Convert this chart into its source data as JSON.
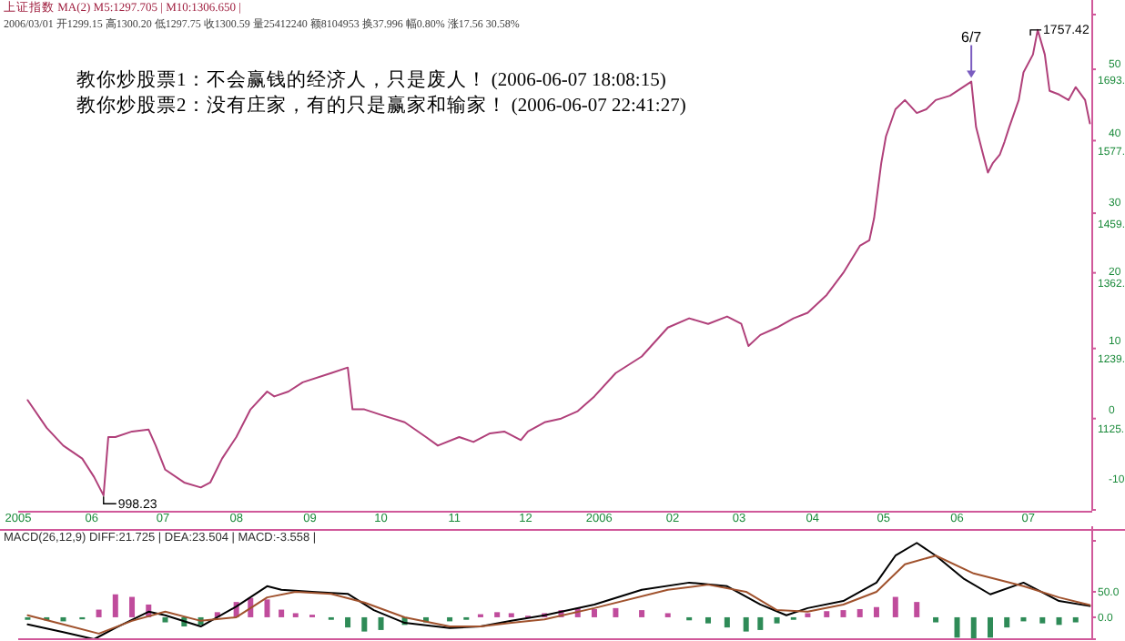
{
  "chart_data": [
    {
      "type": "line",
      "annotations": [
        "上证指数 MA(2) M5:1297.705 | M10:1306.650 |",
        "2006/03/01 开1299.15 高1300.20 低1297.75 收1300.59 量25412240 额8104953 换37.996 幅0.80% 涨17.56 30.58%",
        "教你炒股票1：不会赢钱的经济人，只是废人！ (2006-06-07 18:08:15)",
        "教你炒股票2：没有庄家，有的只是赢家和输家！ (2006-06-07 22:41:27)",
        {
          "text": "998.23",
          "x": "2005-06-06",
          "y": 998.23
        },
        {
          "text": "6/7",
          "x": "2006-06-07",
          "y": 1673
        },
        {
          "text": "1757.42",
          "x": "2006-07-05",
          "y": 1757
        }
      ],
      "xlim": [
        "2005-05-01",
        "2006-07-28"
      ],
      "xticks": [
        {
          "value": "2005-05",
          "label": "2005"
        },
        {
          "value": "2005-06",
          "label": "06"
        },
        {
          "value": "2005-07",
          "label": "07"
        },
        {
          "value": "2005-08",
          "label": "08"
        },
        {
          "value": "2005-09",
          "label": "09"
        },
        {
          "value": "2005-10",
          "label": "10"
        },
        {
          "value": "2005-11",
          "label": "11"
        },
        {
          "value": "2005-12",
          "label": "12"
        },
        {
          "value": "2006-01",
          "label": "2006"
        },
        {
          "value": "2006-02",
          "label": "02"
        },
        {
          "value": "2006-03",
          "label": "03"
        },
        {
          "value": "2006-04",
          "label": "04"
        },
        {
          "value": "2006-05",
          "label": "05"
        },
        {
          "value": "2006-06",
          "label": "06"
        },
        {
          "value": "2006-07",
          "label": "07"
        }
      ],
      "ylim": [
        976.5,
        1782
      ],
      "yticks": [
        {
          "value": 1693,
          "label": "1693."
        },
        {
          "value": 1577,
          "label": "1577."
        },
        {
          "value": 1459,
          "label": "1459."
        },
        {
          "value": 1362,
          "label": "1362."
        },
        {
          "value": 1239,
          "label": "1239."
        },
        {
          "value": 1125,
          "label": "1125."
        }
      ],
      "y2lim": [
        -13.2,
        58.4
      ],
      "y2ticks": [
        50,
        40,
        30,
        20,
        10,
        0,
        -10
      ],
      "series": [
        {
          "color": "#b0407a",
          "x": [
            "2005-05-05",
            "2005-05-13",
            "2005-05-20",
            "2005-05-28",
            "2005-06-02",
            "2005-06-06",
            "2005-06-08",
            "2005-06-11",
            "2005-06-18",
            "2005-06-25",
            "2005-06-28",
            "2005-07-02",
            "2005-07-10",
            "2005-07-17",
            "2005-07-21",
            "2005-07-26",
            "2005-08-01",
            "2005-08-07",
            "2005-08-14",
            "2005-08-17",
            "2005-08-23",
            "2005-08-29",
            "2005-09-10",
            "2005-09-17",
            "2005-09-19",
            "2005-09-24",
            "2005-10-01",
            "2005-10-11",
            "2005-10-20",
            "2005-10-25",
            "2005-11-03",
            "2005-11-09",
            "2005-11-16",
            "2005-11-22",
            "2005-11-29",
            "2005-12-02",
            "2005-12-09",
            "2005-12-16",
            "2005-12-23",
            "2005-12-30",
            "2006-01-08",
            "2006-01-19",
            "2006-01-30",
            "2006-02-08",
            "2006-02-16",
            "2006-02-24",
            "2006-03-02",
            "2006-03-05",
            "2006-03-10",
            "2006-03-17",
            "2006-03-24",
            "2006-03-30",
            "2006-04-07",
            "2006-04-14",
            "2006-04-21",
            "2006-04-25",
            "2006-04-27",
            "2006-04-30",
            "2006-05-02",
            "2006-05-06",
            "2006-05-10",
            "2006-05-15",
            "2006-05-19",
            "2006-05-23",
            "2006-05-29",
            "2006-06-07",
            "2006-06-09",
            "2006-06-12",
            "2006-06-14",
            "2006-06-16",
            "2006-06-19",
            "2006-06-21",
            "2006-06-23",
            "2006-06-27",
            "2006-06-29",
            "2006-07-03",
            "2006-07-05",
            "2006-07-08",
            "2006-07-10",
            "2006-07-14",
            "2006-07-18",
            "2006-07-21",
            "2006-07-25",
            "2006-07-27"
          ],
          "values": [
            1155,
            1110,
            1081,
            1060,
            1030,
            1000,
            1095,
            1095,
            1104,
            1107,
            1081,
            1042,
            1021,
            1013,
            1021,
            1060,
            1095,
            1140,
            1169,
            1161,
            1169,
            1184,
            1199,
            1208,
            1140,
            1140,
            1131,
            1119,
            1095,
            1081,
            1095,
            1087,
            1101,
            1104,
            1090,
            1104,
            1119,
            1125,
            1137,
            1161,
            1199,
            1226,
            1273,
            1288,
            1279,
            1291,
            1279,
            1243,
            1261,
            1273,
            1288,
            1297,
            1326,
            1362,
            1406,
            1415,
            1451,
            1540,
            1584,
            1628,
            1643,
            1622,
            1628,
            1643,
            1650,
            1673,
            1599,
            1554,
            1525,
            1540,
            1554,
            1575,
            1599,
            1643,
            1688,
            1717,
            1757,
            1717,
            1658,
            1652,
            1643,
            1664,
            1643,
            1605
          ]
        }
      ]
    },
    {
      "type": "bar",
      "title": "MACD(26,12,9) DIFF:21.725 | DEA:23.504 | MACD:-3.558 |",
      "xlim": [
        "2005-05-01",
        "2006-07-28"
      ],
      "tick_labels": "y",
      "ylim": [
        -43,
        150
      ],
      "yticks": [
        {
          "value": 50,
          "label": "50.0"
        },
        {
          "value": 0,
          "label": "0.0"
        }
      ],
      "series": [
        {
          "x": [
            "2005-05-05",
            "2005-05-13",
            "2005-05-20",
            "2005-05-28",
            "2005-06-04",
            "2005-06-11",
            "2005-06-18",
            "2005-06-25",
            "2005-07-02",
            "2005-07-10",
            "2005-07-17",
            "2005-07-24",
            "2005-08-01",
            "2005-08-07",
            "2005-08-14",
            "2005-08-20",
            "2005-08-26",
            "2005-09-02",
            "2005-09-10",
            "2005-09-17",
            "2005-09-24",
            "2005-10-01",
            "2005-10-11",
            "2005-10-20",
            "2005-10-30",
            "2005-11-06",
            "2005-11-12",
            "2005-11-19",
            "2005-11-25",
            "2005-12-02",
            "2005-12-09",
            "2005-12-16",
            "2005-12-23",
            "2005-12-30",
            "2006-01-08",
            "2006-01-19",
            "2006-01-30",
            "2006-02-08",
            "2006-02-16",
            "2006-02-24",
            "2006-03-04",
            "2006-03-10",
            "2006-03-17",
            "2006-03-24",
            "2006-03-30",
            "2006-04-07",
            "2006-04-14",
            "2006-04-21",
            "2006-04-28",
            "2006-05-06",
            "2006-05-15",
            "2006-05-23",
            "2006-06-01",
            "2006-06-08",
            "2006-06-15",
            "2006-06-22",
            "2006-06-29",
            "2006-07-07",
            "2006-07-14",
            "2006-07-21"
          ],
          "values": [
            -5,
            -6,
            -8,
            -4,
            15,
            45,
            40,
            25,
            -10,
            -18,
            -15,
            10,
            30,
            38,
            35,
            15,
            8,
            5,
            -5,
            -20,
            -28,
            -25,
            -15,
            -10,
            -8,
            -5,
            6,
            10,
            8,
            3,
            8,
            14,
            18,
            16,
            18,
            14,
            8,
            -6,
            -12,
            -20,
            -28,
            -25,
            -12,
            -5,
            8,
            12,
            14,
            16,
            20,
            40,
            30,
            -10,
            -40,
            -42,
            -40,
            -20,
            -8,
            -12,
            -15,
            -10
          ],
          "colors": [
            "#2e8b57",
            "#2e8b57",
            "#2e8b57",
            "#2e8b57",
            "#c04c9c",
            "#c04c9c",
            "#c04c9c",
            "#c04c9c",
            "#2e8b57",
            "#2e8b57",
            "#2e8b57",
            "#c04c9c",
            "#c04c9c",
            "#c04c9c",
            "#c04c9c",
            "#c04c9c",
            "#c04c9c",
            "#c04c9c",
            "#2e8b57",
            "#2e8b57",
            "#2e8b57",
            "#2e8b57",
            "#2e8b57",
            "#2e8b57",
            "#2e8b57",
            "#2e8b57",
            "#c04c9c",
            "#c04c9c",
            "#c04c9c",
            "#c04c9c",
            "#c04c9c",
            "#c04c9c",
            "#c04c9c",
            "#c04c9c",
            "#c04c9c",
            "#c04c9c",
            "#c04c9c",
            "#2e8b57",
            "#2e8b57",
            "#2e8b57",
            "#2e8b57",
            "#2e8b57",
            "#2e8b57",
            "#2e8b57",
            "#c04c9c",
            "#c04c9c",
            "#c04c9c",
            "#c04c9c",
            "#c04c9c",
            "#c04c9c",
            "#c04c9c",
            "#2e8b57",
            "#2e8b57",
            "#2e8b57",
            "#2e8b57",
            "#2e8b57",
            "#2e8b57",
            "#2e8b57",
            "#2e8b57",
            "#2e8b57"
          ]
        },
        {
          "type": "line",
          "color": "#000000",
          "x": [
            "2005-05-05",
            "2005-05-20",
            "2005-06-02",
            "2005-06-11",
            "2005-06-25",
            "2005-07-02",
            "2005-07-17",
            "2005-08-01",
            "2005-08-14",
            "2005-08-20",
            "2005-09-02",
            "2005-09-17",
            "2005-09-28",
            "2005-10-11",
            "2005-10-30",
            "2005-11-12",
            "2005-11-25",
            "2005-12-09",
            "2005-12-30",
            "2006-01-19",
            "2006-02-08",
            "2006-02-24",
            "2006-03-10",
            "2006-03-21",
            "2006-03-30",
            "2006-04-14",
            "2006-04-28",
            "2006-05-06",
            "2006-05-15",
            "2006-05-23",
            "2006-06-04",
            "2006-06-15",
            "2006-06-29",
            "2006-07-14",
            "2006-07-27"
          ],
          "values": [
            -14,
            -29,
            -43,
            -21,
            11,
            4,
            -18,
            21,
            61,
            54,
            50,
            46,
            14,
            -11,
            -21,
            -18,
            -7,
            4,
            25,
            54,
            68,
            61,
            25,
            4,
            18,
            32,
            68,
            121,
            146,
            121,
            75,
            45,
            68,
            32,
            22
          ]
        },
        {
          "type": "line",
          "color": "#a0522d",
          "x": [
            "2005-05-05",
            "2005-05-20",
            "2005-06-04",
            "2005-06-18",
            "2005-07-02",
            "2005-07-17",
            "2005-08-01",
            "2005-08-14",
            "2005-08-26",
            "2005-09-10",
            "2005-09-24",
            "2005-10-11",
            "2005-10-30",
            "2005-11-12",
            "2005-11-25",
            "2005-12-09",
            "2005-12-30",
            "2006-01-30",
            "2006-02-16",
            "2006-03-04",
            "2006-03-17",
            "2006-03-30",
            "2006-04-14",
            "2006-04-28",
            "2006-05-10",
            "2006-05-23",
            "2006-06-08",
            "2006-06-29",
            "2006-07-14",
            "2006-07-27"
          ],
          "values": [
            4,
            -14,
            -32,
            -7,
            11,
            -7,
            0,
            39,
            50,
            46,
            29,
            0,
            -18,
            -18,
            -11,
            -4,
            18,
            54,
            64,
            50,
            14,
            11,
            25,
            50,
            104,
            121,
            86,
            61,
            39,
            24
          ]
        }
      ]
    }
  ]
}
